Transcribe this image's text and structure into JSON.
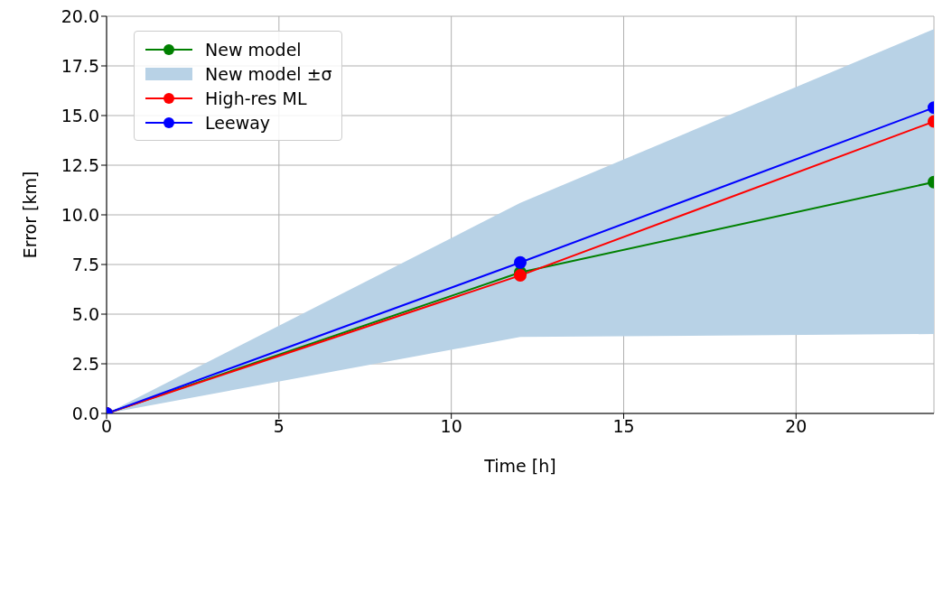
{
  "chart_data": {
    "type": "line",
    "xlabel": "Time [h]",
    "ylabel": "Error [km]",
    "x": [
      0,
      12,
      24
    ],
    "xlim": [
      0,
      24
    ],
    "xticks": [
      0,
      5,
      10,
      15,
      20
    ],
    "ylim": [
      0,
      20
    ],
    "yticks": [
      {
        "value": 0,
        "label": "0.0"
      },
      {
        "value": 2.5,
        "label": "2.5"
      },
      {
        "value": 5,
        "label": "5.0"
      },
      {
        "value": 7.5,
        "label": "7.5"
      },
      {
        "value": 10,
        "label": "10.0"
      },
      {
        "value": 12.5,
        "label": "12.5"
      },
      {
        "value": 15,
        "label": "15.0"
      },
      {
        "value": 17.5,
        "label": "17.5"
      },
      {
        "value": 20,
        "label": "20.0"
      }
    ],
    "annotations": [
      "New model ±σ"
    ],
    "grid": true,
    "legend": "top left",
    "marker": "circle",
    "line_style": "solid",
    "series": [
      {
        "name": "New model",
        "color": "#008000",
        "values": [
          0,
          7.1,
          11.65
        ],
        "lower": [
          0,
          3.85,
          4.0
        ],
        "upper": [
          0,
          10.6,
          19.35
        ]
      },
      {
        "name": "High-res ML",
        "color": "#ff0000",
        "values": [
          0,
          6.95,
          14.7
        ]
      },
      {
        "name": "Leeway",
        "color": "#0000ff",
        "values": [
          0,
          7.6,
          15.4
        ]
      }
    ]
  }
}
